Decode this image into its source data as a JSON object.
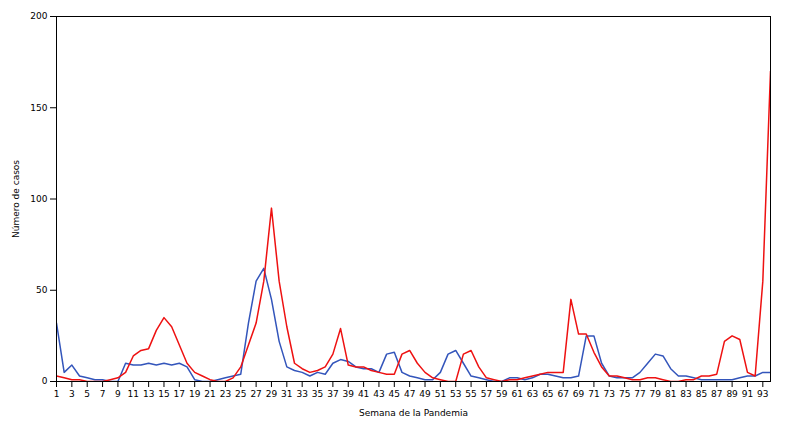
{
  "chart_data": {
    "type": "line",
    "xlabel": "Semana de la Pandemia",
    "ylabel": "Número de casos",
    "x": [
      1,
      2,
      3,
      4,
      5,
      6,
      7,
      8,
      9,
      10,
      11,
      12,
      13,
      14,
      15,
      16,
      17,
      18,
      19,
      20,
      21,
      22,
      23,
      24,
      25,
      26,
      27,
      28,
      29,
      30,
      31,
      32,
      33,
      34,
      35,
      36,
      37,
      38,
      39,
      40,
      41,
      42,
      43,
      44,
      45,
      46,
      47,
      48,
      49,
      50,
      51,
      52,
      53,
      54,
      55,
      56,
      57,
      58,
      59,
      60,
      61,
      62,
      63,
      64,
      65,
      66,
      67,
      68,
      69,
      70,
      71,
      72,
      73,
      74,
      75,
      76,
      77,
      78,
      79,
      80,
      81,
      82,
      83,
      84,
      85,
      86,
      87,
      88,
      89,
      90,
      91,
      92,
      93,
      94
    ],
    "series": [
      {
        "color": "#3355bb",
        "values": [
          32,
          5,
          9,
          3,
          2,
          1,
          1,
          0,
          0,
          10,
          9,
          9,
          10,
          9,
          10,
          9,
          10,
          8,
          1,
          0,
          0,
          1,
          2,
          3,
          4,
          32,
          55,
          62,
          45,
          22,
          8,
          6,
          5,
          3,
          5,
          4,
          10,
          12,
          11,
          8,
          7,
          7,
          5,
          15,
          16,
          5,
          3,
          2,
          1,
          1,
          5,
          15,
          17,
          10,
          3,
          2,
          1,
          0,
          0,
          2,
          2,
          1,
          2,
          4,
          4,
          3,
          2,
          2,
          3,
          25,
          25,
          10,
          3,
          2,
          2,
          2,
          5,
          10,
          15,
          14,
          7,
          3,
          3,
          2,
          1,
          1,
          1,
          1,
          1,
          2,
          3,
          3,
          5,
          5
        ]
      },
      {
        "color": "#ee1111",
        "values": [
          3,
          2,
          1,
          1,
          0,
          0,
          0,
          1,
          2,
          5,
          14,
          17,
          18,
          28,
          35,
          30,
          20,
          10,
          5,
          3,
          1,
          0,
          0,
          2,
          8,
          20,
          32,
          55,
          95,
          55,
          30,
          10,
          7,
          5,
          6,
          8,
          15,
          29,
          9,
          8,
          8,
          6,
          5,
          4,
          4,
          15,
          17,
          10,
          5,
          2,
          1,
          0,
          0,
          15,
          17,
          8,
          2,
          1,
          0,
          1,
          1,
          2,
          3,
          4,
          5,
          5,
          5,
          45,
          26,
          26,
          16,
          8,
          3,
          3,
          2,
          1,
          1,
          2,
          2,
          1,
          0,
          0,
          1,
          1,
          3,
          3,
          4,
          22,
          25,
          23,
          5,
          3,
          55,
          170
        ]
      }
    ],
    "xlim": [
      1,
      94
    ],
    "xticks": [
      1,
      3,
      5,
      7,
      9,
      11,
      13,
      15,
      17,
      19,
      21,
      23,
      25,
      27,
      29,
      31,
      33,
      35,
      37,
      39,
      41,
      43,
      45,
      47,
      49,
      51,
      53,
      55,
      57,
      59,
      61,
      63,
      65,
      67,
      69,
      71,
      73,
      75,
      77,
      79,
      81,
      83,
      85,
      87,
      89,
      91,
      93
    ],
    "ylim": [
      0,
      200
    ],
    "yticks": [
      0,
      50,
      100,
      150,
      200
    ],
    "grid": false
  }
}
